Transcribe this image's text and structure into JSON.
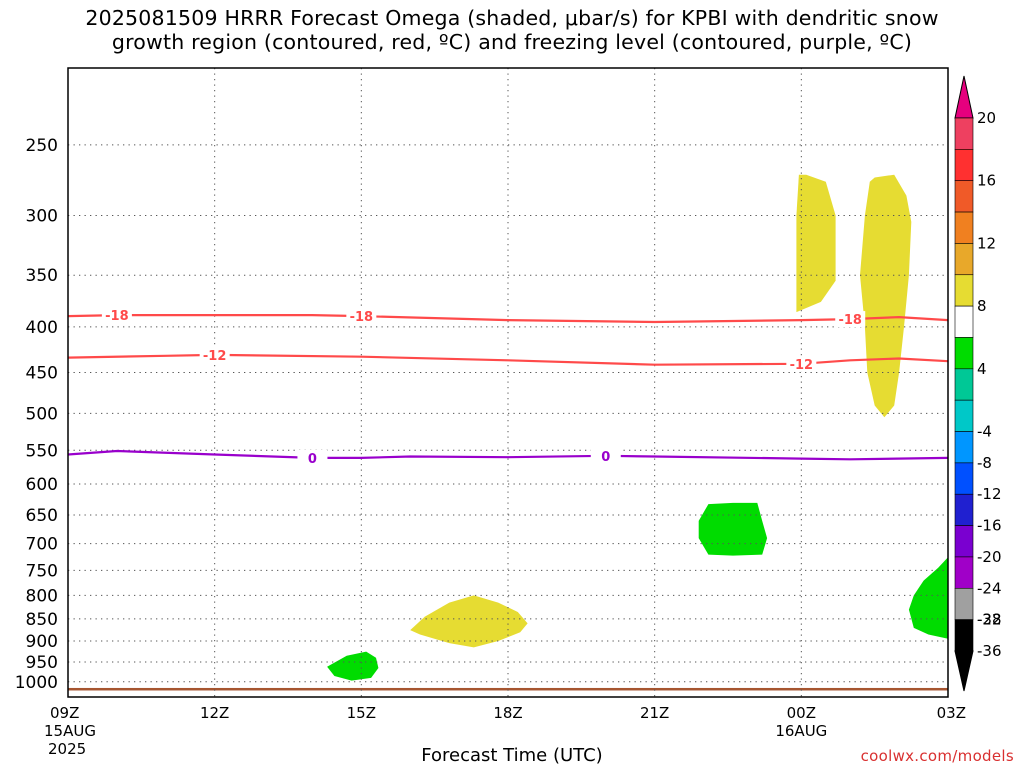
{
  "title_line1": "2025081509 HRRR Forecast Omega (shaded, μbar/s) for KPBI with dendritic snow",
  "title_line2": "growth region (contoured, red, ºC) and freezing level (contoured, purple, ºC)",
  "xaxis_title": "Forecast Time (UTC)",
  "credit": "coolwx.com/models",
  "chart_data": {
    "type": "heatmap",
    "title": "2025081509 HRRR Forecast Omega (shaded, μbar/s) for KPBI with dendritic snow growth region (contoured, red, ºC) and freezing level (contoured, purple, ºC)",
    "xlabel": "Forecast Time (UTC)",
    "ylabel": "",
    "x_range_hours": [
      9,
      27
    ],
    "y_range_hPa": [
      1040,
      205
    ],
    "x_ticks": [
      {
        "hour": 9,
        "label": "09Z",
        "sub1": "15AUG",
        "sub2": "2025"
      },
      {
        "hour": 12,
        "label": "12Z",
        "sub1": "",
        "sub2": ""
      },
      {
        "hour": 15,
        "label": "15Z",
        "sub1": "",
        "sub2": ""
      },
      {
        "hour": 18,
        "label": "18Z",
        "sub1": "",
        "sub2": ""
      },
      {
        "hour": 21,
        "label": "21Z",
        "sub1": "",
        "sub2": ""
      },
      {
        "hour": 24,
        "label": "00Z",
        "sub1": "16AUG",
        "sub2": ""
      },
      {
        "hour": 27,
        "label": "03Z",
        "sub1": "",
        "sub2": ""
      }
    ],
    "y_ticks": [
      250,
      300,
      350,
      400,
      450,
      500,
      550,
      600,
      650,
      700,
      750,
      800,
      850,
      900,
      950,
      1000
    ],
    "grid": true,
    "contours": [
      {
        "kind": "dendritic",
        "level": -18,
        "label": "-18",
        "color": "#ff4a4a",
        "points": [
          [
            9,
            389
          ],
          [
            10,
            388
          ],
          [
            12,
            388
          ],
          [
            14,
            388
          ],
          [
            15,
            389
          ],
          [
            18,
            393
          ],
          [
            21,
            395
          ],
          [
            24,
            393
          ],
          [
            25,
            392
          ],
          [
            26,
            390
          ],
          [
            27,
            393
          ]
        ],
        "label_hours": [
          10,
          15,
          25
        ]
      },
      {
        "kind": "dendritic",
        "level": -12,
        "label": "-12",
        "color": "#ff4a4a",
        "points": [
          [
            9,
            433
          ],
          [
            11,
            431
          ],
          [
            12,
            430
          ],
          [
            15,
            432
          ],
          [
            18,
            436
          ],
          [
            21,
            441
          ],
          [
            24,
            440
          ],
          [
            25,
            436
          ],
          [
            26,
            434
          ],
          [
            27,
            437
          ]
        ],
        "label_hours": [
          12,
          24
        ]
      },
      {
        "kind": "freezing",
        "level": 0,
        "label": "0",
        "color": "#9900cc",
        "points": [
          [
            9,
            556
          ],
          [
            10,
            551
          ],
          [
            12,
            556
          ],
          [
            14,
            561
          ],
          [
            15,
            561
          ],
          [
            16,
            559
          ],
          [
            18,
            560
          ],
          [
            20,
            558
          ],
          [
            21,
            559
          ],
          [
            24,
            562
          ],
          [
            25,
            563
          ],
          [
            27,
            561
          ]
        ],
        "label_hours": [
          14,
          20
        ]
      }
    ],
    "shaded_regions": [
      {
        "bin": "4 to 8",
        "color": "#e6dc32",
        "points": [
          [
            23.9,
            385
          ],
          [
            24.4,
            375
          ],
          [
            24.7,
            355
          ],
          [
            24.7,
            300
          ],
          [
            24.5,
            275
          ],
          [
            24.1,
            270
          ],
          [
            23.95,
            270
          ],
          [
            23.9,
            300
          ],
          [
            23.9,
            350
          ]
        ]
      },
      {
        "bin": "4 to 8",
        "color": "#e6dc32",
        "points": [
          [
            25.5,
            272
          ],
          [
            25.9,
            270
          ],
          [
            26.15,
            285
          ],
          [
            26.25,
            305
          ],
          [
            26.2,
            350
          ],
          [
            26.1,
            400
          ],
          [
            26.0,
            450
          ],
          [
            25.9,
            490
          ],
          [
            25.7,
            505
          ],
          [
            25.5,
            490
          ],
          [
            25.35,
            450
          ],
          [
            25.3,
            400
          ],
          [
            25.2,
            350
          ],
          [
            25.3,
            300
          ],
          [
            25.4,
            275
          ]
        ]
      },
      {
        "bin": "4 to 8",
        "color": "#e6dc32",
        "points": [
          [
            16.0,
            875
          ],
          [
            16.3,
            845
          ],
          [
            16.8,
            815
          ],
          [
            17.3,
            800
          ],
          [
            17.8,
            815
          ],
          [
            18.2,
            835
          ],
          [
            18.4,
            860
          ],
          [
            18.25,
            880
          ],
          [
            17.8,
            900
          ],
          [
            17.3,
            915
          ],
          [
            16.8,
            905
          ],
          [
            16.2,
            885
          ]
        ]
      },
      {
        "bin": "-8 to -4",
        "color": "#00dc00",
        "points": [
          [
            22.1,
            632
          ],
          [
            22.6,
            630
          ],
          [
            23.1,
            630
          ],
          [
            23.2,
            660
          ],
          [
            23.3,
            690
          ],
          [
            23.2,
            720
          ],
          [
            22.6,
            722
          ],
          [
            22.1,
            720
          ],
          [
            21.9,
            690
          ],
          [
            21.9,
            660
          ]
        ]
      },
      {
        "bin": "-8 to -4",
        "color": "#00dc00",
        "points": [
          [
            27,
            725
          ],
          [
            26.8,
            745
          ],
          [
            26.5,
            770
          ],
          [
            26.3,
            800
          ],
          [
            26.2,
            830
          ],
          [
            26.3,
            870
          ],
          [
            26.6,
            885
          ],
          [
            27,
            895
          ]
        ]
      },
      {
        "bin": "-8 to -4",
        "color": "#00dc00",
        "points": [
          [
            14.3,
            962
          ],
          [
            14.7,
            935
          ],
          [
            15.1,
            925
          ],
          [
            15.3,
            940
          ],
          [
            15.35,
            965
          ],
          [
            15.2,
            990
          ],
          [
            14.8,
            997
          ],
          [
            14.45,
            985
          ]
        ]
      }
    ],
    "surface_color": "#a65530",
    "surface_pressure_hPa": [
      1016,
      1020
    ],
    "colorbar": {
      "labels": [
        "20",
        "16",
        "12",
        "8",
        "4",
        "-4",
        "-8",
        "-12",
        "-16",
        "-20",
        "-24",
        "-28",
        "-32",
        "-36"
      ],
      "bins": [
        {
          "color": "#ee4060"
        },
        {
          "color": "#ff3030"
        },
        {
          "color": "#f05a28"
        },
        {
          "color": "#f08020"
        },
        {
          "color": "#e8a82a"
        },
        {
          "color": "#e6dc32"
        },
        {
          "color": "#ffffff"
        },
        {
          "color": "#00dc00"
        },
        {
          "color": "#00c896"
        },
        {
          "color": "#00c8c8"
        },
        {
          "color": "#0096ff"
        },
        {
          "color": "#0050ff"
        },
        {
          "color": "#2020d0"
        },
        {
          "color": "#7a00d0"
        },
        {
          "color": "#a000c8"
        },
        {
          "color": "#a0a0a0"
        },
        {
          "color": "#000000"
        }
      ],
      "top_arrow_color": "#e6007e",
      "bottom_arrow_color": "#000000"
    }
  }
}
